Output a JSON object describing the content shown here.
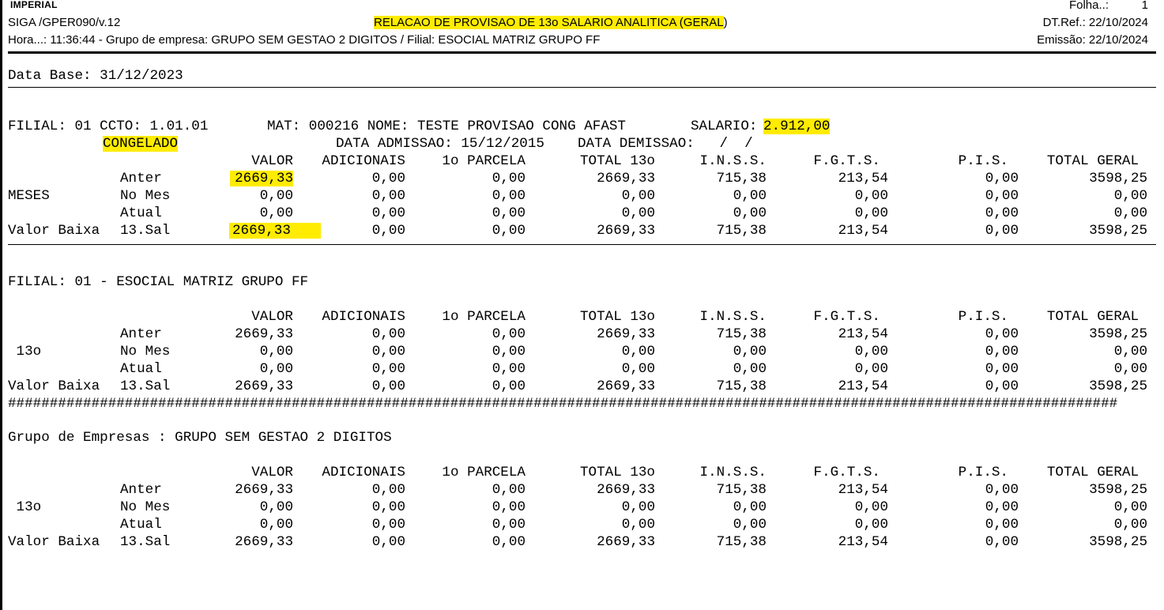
{
  "header": {
    "logo": "IMPERIAL",
    "program": "SIGA /GPER090/v.12",
    "title": "RELACAO DE PROVISAO DE 13o SALARIO ANALITICA (GERAL",
    "title_close": ")",
    "folha_label": "Folha..:",
    "folha_value": "1",
    "dtref": "DT.Ref.: 22/10/2024",
    "hora_line": "Hora...: 11:36:44 - Grupo de empresa: GRUPO SEM GESTAO 2 DIGITOS / Filial: ESOCIAL MATRIZ GRUPO FF",
    "emissao": "Emissão: 22/10/2024",
    "highlight_color": "#ffec00"
  },
  "data_base": "Data Base: 31/12/2023",
  "columns": [
    "VALOR",
    "ADICIONAIS",
    "1o PARCELA",
    "TOTAL 13o",
    "I.N.S.S.",
    "F.G.T.S.",
    "P.I.S.",
    "TOTAL GERAL"
  ],
  "employee": {
    "line1": "FILIAL: 01 CCTO: 1.01.01",
    "mat": "MAT: 000216 NOME: TESTE PROVISAO CONG AFAST",
    "salario_label": "SALARIO:",
    "salario": "2.912,00",
    "status": "CONGELADO",
    "admissao": "DATA ADMISSAO: 15/12/2015",
    "demissao": "DATA DEMISSAO:   /  /"
  },
  "sections": [
    {
      "title": "",
      "group_label": "MESES",
      "rows": [
        {
          "label1": "",
          "label2": "Anter",
          "values": [
            "2669,33",
            "0,00",
            "0,00",
            "2669,33",
            "715,38",
            "213,54",
            "0,00",
            "3598,25"
          ]
        },
        {
          "label1": "MESES",
          "label2": "No Mes",
          "values": [
            "0,00",
            "0,00",
            "0,00",
            "0,00",
            "0,00",
            "0,00",
            "0,00",
            "0,00"
          ]
        },
        {
          "label1": "",
          "label2": "Atual",
          "values": [
            "0,00",
            "0,00",
            "0,00",
            "0,00",
            "0,00",
            "0,00",
            "0,00",
            "0,00"
          ]
        },
        {
          "label1": "Valor Baixa",
          "label2": "13.Sal",
          "values": [
            "2669,33",
            "0,00",
            "0,00",
            "2669,33",
            "715,38",
            "213,54",
            "0,00",
            "3598,25"
          ]
        }
      ]
    },
    {
      "title": "FILIAL: 01 - ESOCIAL MATRIZ GRUPO FF",
      "rows": [
        {
          "label1": "",
          "label2": "Anter",
          "values": [
            "2669,33",
            "0,00",
            "0,00",
            "2669,33",
            "715,38",
            "213,54",
            "0,00",
            "3598,25"
          ]
        },
        {
          "label1": " 13o",
          "label2": "No Mes",
          "values": [
            "0,00",
            "0,00",
            "0,00",
            "0,00",
            "0,00",
            "0,00",
            "0,00",
            "0,00"
          ]
        },
        {
          "label1": "",
          "label2": "Atual",
          "values": [
            "0,00",
            "0,00",
            "0,00",
            "0,00",
            "0,00",
            "0,00",
            "0,00",
            "0,00"
          ]
        },
        {
          "label1": "Valor Baixa",
          "label2": "13.Sal",
          "values": [
            "2669,33",
            "0,00",
            "0,00",
            "2669,33",
            "715,38",
            "213,54",
            "0,00",
            "3598,25"
          ]
        }
      ]
    },
    {
      "title": "Grupo de Empresas : GRUPO SEM GESTAO 2 DIGITOS",
      "rows": [
        {
          "label1": "",
          "label2": "Anter",
          "values": [
            "2669,33",
            "0,00",
            "0,00",
            "2669,33",
            "715,38",
            "213,54",
            "0,00",
            "3598,25"
          ]
        },
        {
          "label1": " 13o",
          "label2": "No Mes",
          "values": [
            "0,00",
            "0,00",
            "0,00",
            "0,00",
            "0,00",
            "0,00",
            "0,00",
            "0,00"
          ]
        },
        {
          "label1": "",
          "label2": "Atual",
          "values": [
            "0,00",
            "0,00",
            "0,00",
            "0,00",
            "0,00",
            "0,00",
            "0,00",
            "0,00"
          ]
        },
        {
          "label1": "Valor Baixa",
          "label2": "13.Sal",
          "values": [
            "2669,33",
            "0,00",
            "0,00",
            "2669,33",
            "715,38",
            "213,54",
            "0,00",
            "3598,25"
          ]
        }
      ]
    }
  ],
  "separator": "#####################################################################################################################################"
}
